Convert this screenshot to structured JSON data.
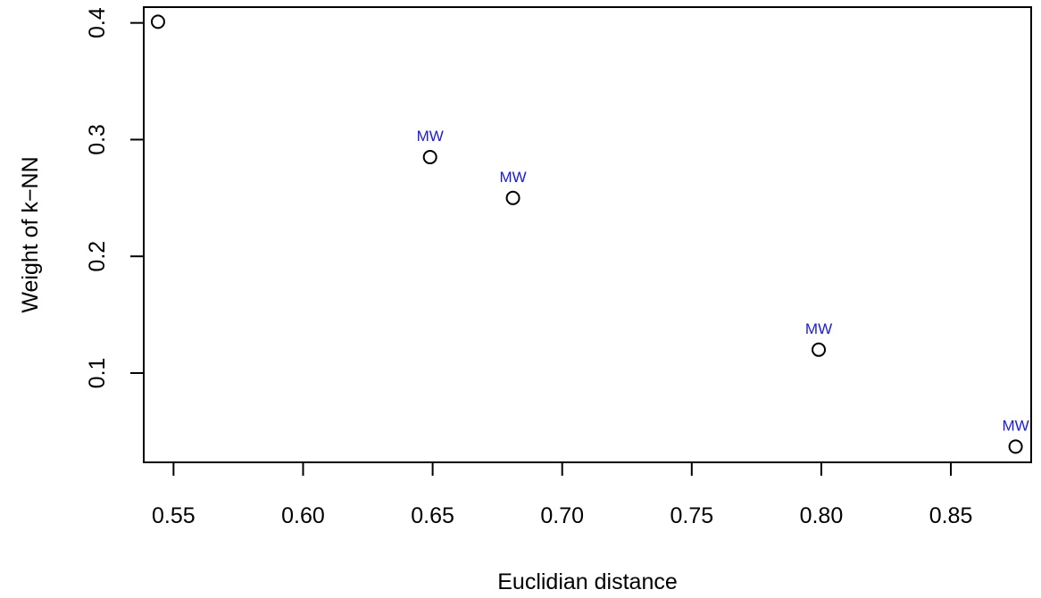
{
  "chart_data": {
    "type": "scatter",
    "title": "",
    "xlabel": "Euclidian distance",
    "ylabel": "Weight of k−NN",
    "xlim": [
      0.5385,
      0.881
    ],
    "ylim": [
      0.0235,
      0.4135
    ],
    "grid": false,
    "legend": "none",
    "x_ticks": [
      {
        "value": 0.55,
        "label": "0.55"
      },
      {
        "value": 0.6,
        "label": "0.60"
      },
      {
        "value": 0.65,
        "label": "0.65"
      },
      {
        "value": 0.7,
        "label": "0.70"
      },
      {
        "value": 0.75,
        "label": "0.75"
      },
      {
        "value": 0.8,
        "label": "0.80"
      },
      {
        "value": 0.85,
        "label": "0.85"
      }
    ],
    "y_ticks": [
      {
        "value": 0.1,
        "label": "0.1"
      },
      {
        "value": 0.2,
        "label": "0.2"
      },
      {
        "value": 0.3,
        "label": "0.3"
      },
      {
        "value": 0.4,
        "label": "0.4"
      }
    ],
    "points": [
      {
        "x": 0.544,
        "y": 0.401,
        "label": ""
      },
      {
        "x": 0.649,
        "y": 0.285,
        "label": "MW"
      },
      {
        "x": 0.681,
        "y": 0.25,
        "label": "MW"
      },
      {
        "x": 0.799,
        "y": 0.12,
        "label": "MW"
      },
      {
        "x": 0.875,
        "y": 0.037,
        "label": "MW"
      }
    ],
    "colors": {
      "point_stroke": "#000000",
      "point_label": "#1a1ae6",
      "axis": "#000000"
    }
  }
}
